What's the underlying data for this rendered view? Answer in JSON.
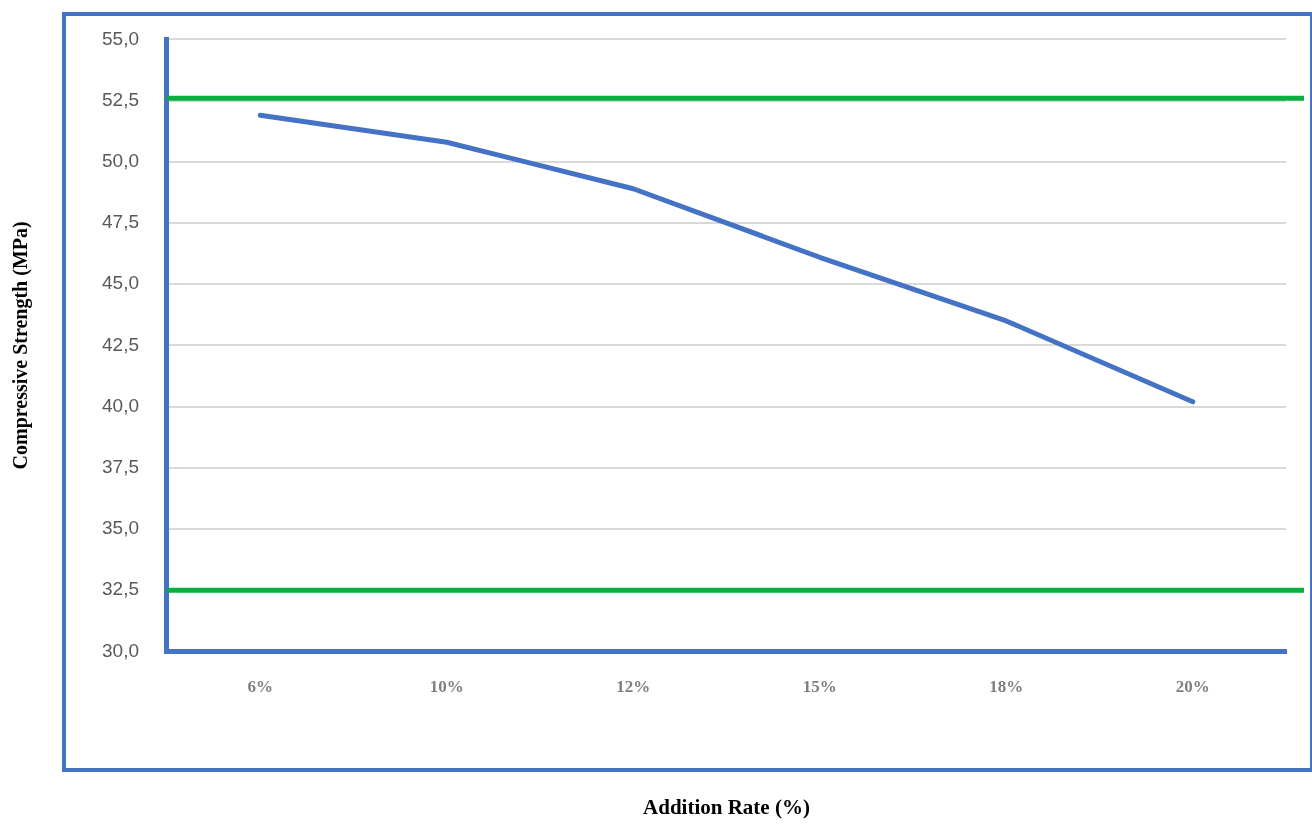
{
  "chart_data": {
    "type": "line",
    "xlabel": "Addition Rate (%)",
    "ylabel": "Compressive Strength (MPa)",
    "categories": [
      "6%",
      "10%",
      "12%",
      "15%",
      "18%",
      "20%"
    ],
    "series": [
      {
        "color": "#4472c4",
        "values": [
          51.9,
          50.8,
          48.9,
          46.1,
          43.5,
          40.2
        ]
      }
    ],
    "ylim": [
      30,
      55
    ],
    "yticks": [
      {
        "value": 30,
        "label": "30,0"
      },
      {
        "value": 32.5,
        "label": "32,5"
      },
      {
        "value": 35,
        "label": "35,0"
      },
      {
        "value": 37.5,
        "label": "37,5"
      },
      {
        "value": 40,
        "label": "40,0"
      },
      {
        "value": 42.5,
        "label": "42,5"
      },
      {
        "value": 45,
        "label": "45,0"
      },
      {
        "value": 47.5,
        "label": "47,5"
      },
      {
        "value": 50,
        "label": "50,0"
      },
      {
        "value": 52.5,
        "label": "52,5"
      },
      {
        "value": 55,
        "label": "55,0"
      }
    ],
    "ref_lines": [
      {
        "axis": "y",
        "value": 52.6,
        "color": "#0aad3f"
      },
      {
        "axis": "y",
        "value": 32.5,
        "color": "#0aad3f"
      }
    ],
    "grid": "y",
    "legend": false,
    "marker": "none",
    "line_style": "solid"
  }
}
